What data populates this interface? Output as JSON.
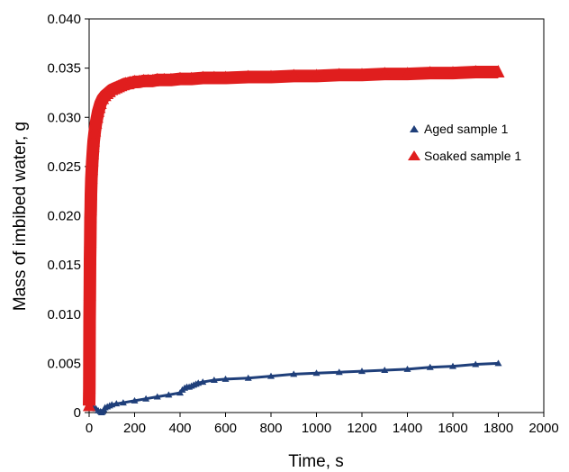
{
  "chart_data": {
    "type": "scatter",
    "title": "",
    "xlabel": "Time, s",
    "ylabel": "Mass of imbibed water, g",
    "xlim": [
      0,
      2000
    ],
    "ylim": [
      0,
      0.04
    ],
    "x_ticks": [
      0,
      200,
      400,
      600,
      800,
      1000,
      1200,
      1400,
      1600,
      1800,
      2000
    ],
    "x_tick_labels": [
      "0",
      "200",
      "400",
      "600",
      "800",
      "1000",
      "1200",
      "1400",
      "1600",
      "1800",
      "2000"
    ],
    "y_ticks": [
      0,
      0.005,
      0.01,
      0.015,
      0.02,
      0.025,
      0.03,
      0.035,
      0.04
    ],
    "y_tick_labels": [
      "0",
      "0.005",
      "0.010",
      "0.015",
      "0.020",
      "0.025",
      "0.030",
      "0.035",
      "0.040"
    ],
    "grid": false,
    "legend_position": "right",
    "series": [
      {
        "name": "Aged sample 1",
        "marker": "triangle",
        "color": "#1f3f7a",
        "x": [
          0,
          10,
          20,
          30,
          40,
          50,
          55,
          60,
          65,
          70,
          80,
          90,
          100,
          120,
          150,
          200,
          250,
          300,
          350,
          400,
          410,
          420,
          430,
          440,
          450,
          460,
          470,
          480,
          500,
          550,
          600,
          700,
          800,
          900,
          1000,
          1100,
          1200,
          1300,
          1400,
          1500,
          1600,
          1700,
          1800
        ],
        "y": [
          0.0009,
          0.0007,
          0.0005,
          0.0004,
          0.0002,
          0.0001,
          0.0,
          0.0001,
          0.0003,
          0.0005,
          0.0006,
          0.0007,
          0.0008,
          0.0009,
          0.001,
          0.0012,
          0.0014,
          0.0016,
          0.0018,
          0.002,
          0.0023,
          0.0025,
          0.0026,
          0.0026,
          0.0027,
          0.0028,
          0.0029,
          0.003,
          0.0031,
          0.0033,
          0.0034,
          0.0035,
          0.0037,
          0.0039,
          0.004,
          0.0041,
          0.0042,
          0.0043,
          0.0044,
          0.0046,
          0.0047,
          0.0049,
          0.005
        ]
      },
      {
        "name": "Soaked sample 1",
        "marker": "triangle",
        "color": "#e01e1e",
        "x": [
          0,
          1,
          2,
          3,
          4,
          5,
          6,
          7,
          8,
          10,
          12,
          14,
          16,
          18,
          20,
          25,
          30,
          35,
          40,
          45,
          50,
          60,
          70,
          80,
          90,
          100,
          110,
          120,
          130,
          140,
          150,
          160,
          170,
          180,
          190,
          200,
          220,
          240,
          260,
          280,
          300,
          330,
          360,
          400,
          450,
          500,
          550,
          600,
          700,
          800,
          900,
          1000,
          1100,
          1200,
          1300,
          1400,
          1500,
          1600,
          1700,
          1800
        ],
        "y": [
          0.0007,
          0.0025,
          0.0092,
          0.0119,
          0.0156,
          0.0173,
          0.0198,
          0.0206,
          0.0222,
          0.0238,
          0.0247,
          0.0256,
          0.0263,
          0.027,
          0.0276,
          0.0286,
          0.0294,
          0.03,
          0.0306,
          0.031,
          0.0314,
          0.0319,
          0.0322,
          0.0324,
          0.0326,
          0.0328,
          0.0329,
          0.033,
          0.0331,
          0.0332,
          0.0333,
          0.0334,
          0.0334,
          0.0335,
          0.0335,
          0.0336,
          0.0336,
          0.0337,
          0.0337,
          0.0337,
          0.0338,
          0.0338,
          0.0338,
          0.0339,
          0.0339,
          0.034,
          0.034,
          0.034,
          0.0341,
          0.0341,
          0.0342,
          0.0342,
          0.0343,
          0.0343,
          0.0344,
          0.0344,
          0.0345,
          0.0345,
          0.0346,
          0.0346
        ]
      }
    ]
  }
}
